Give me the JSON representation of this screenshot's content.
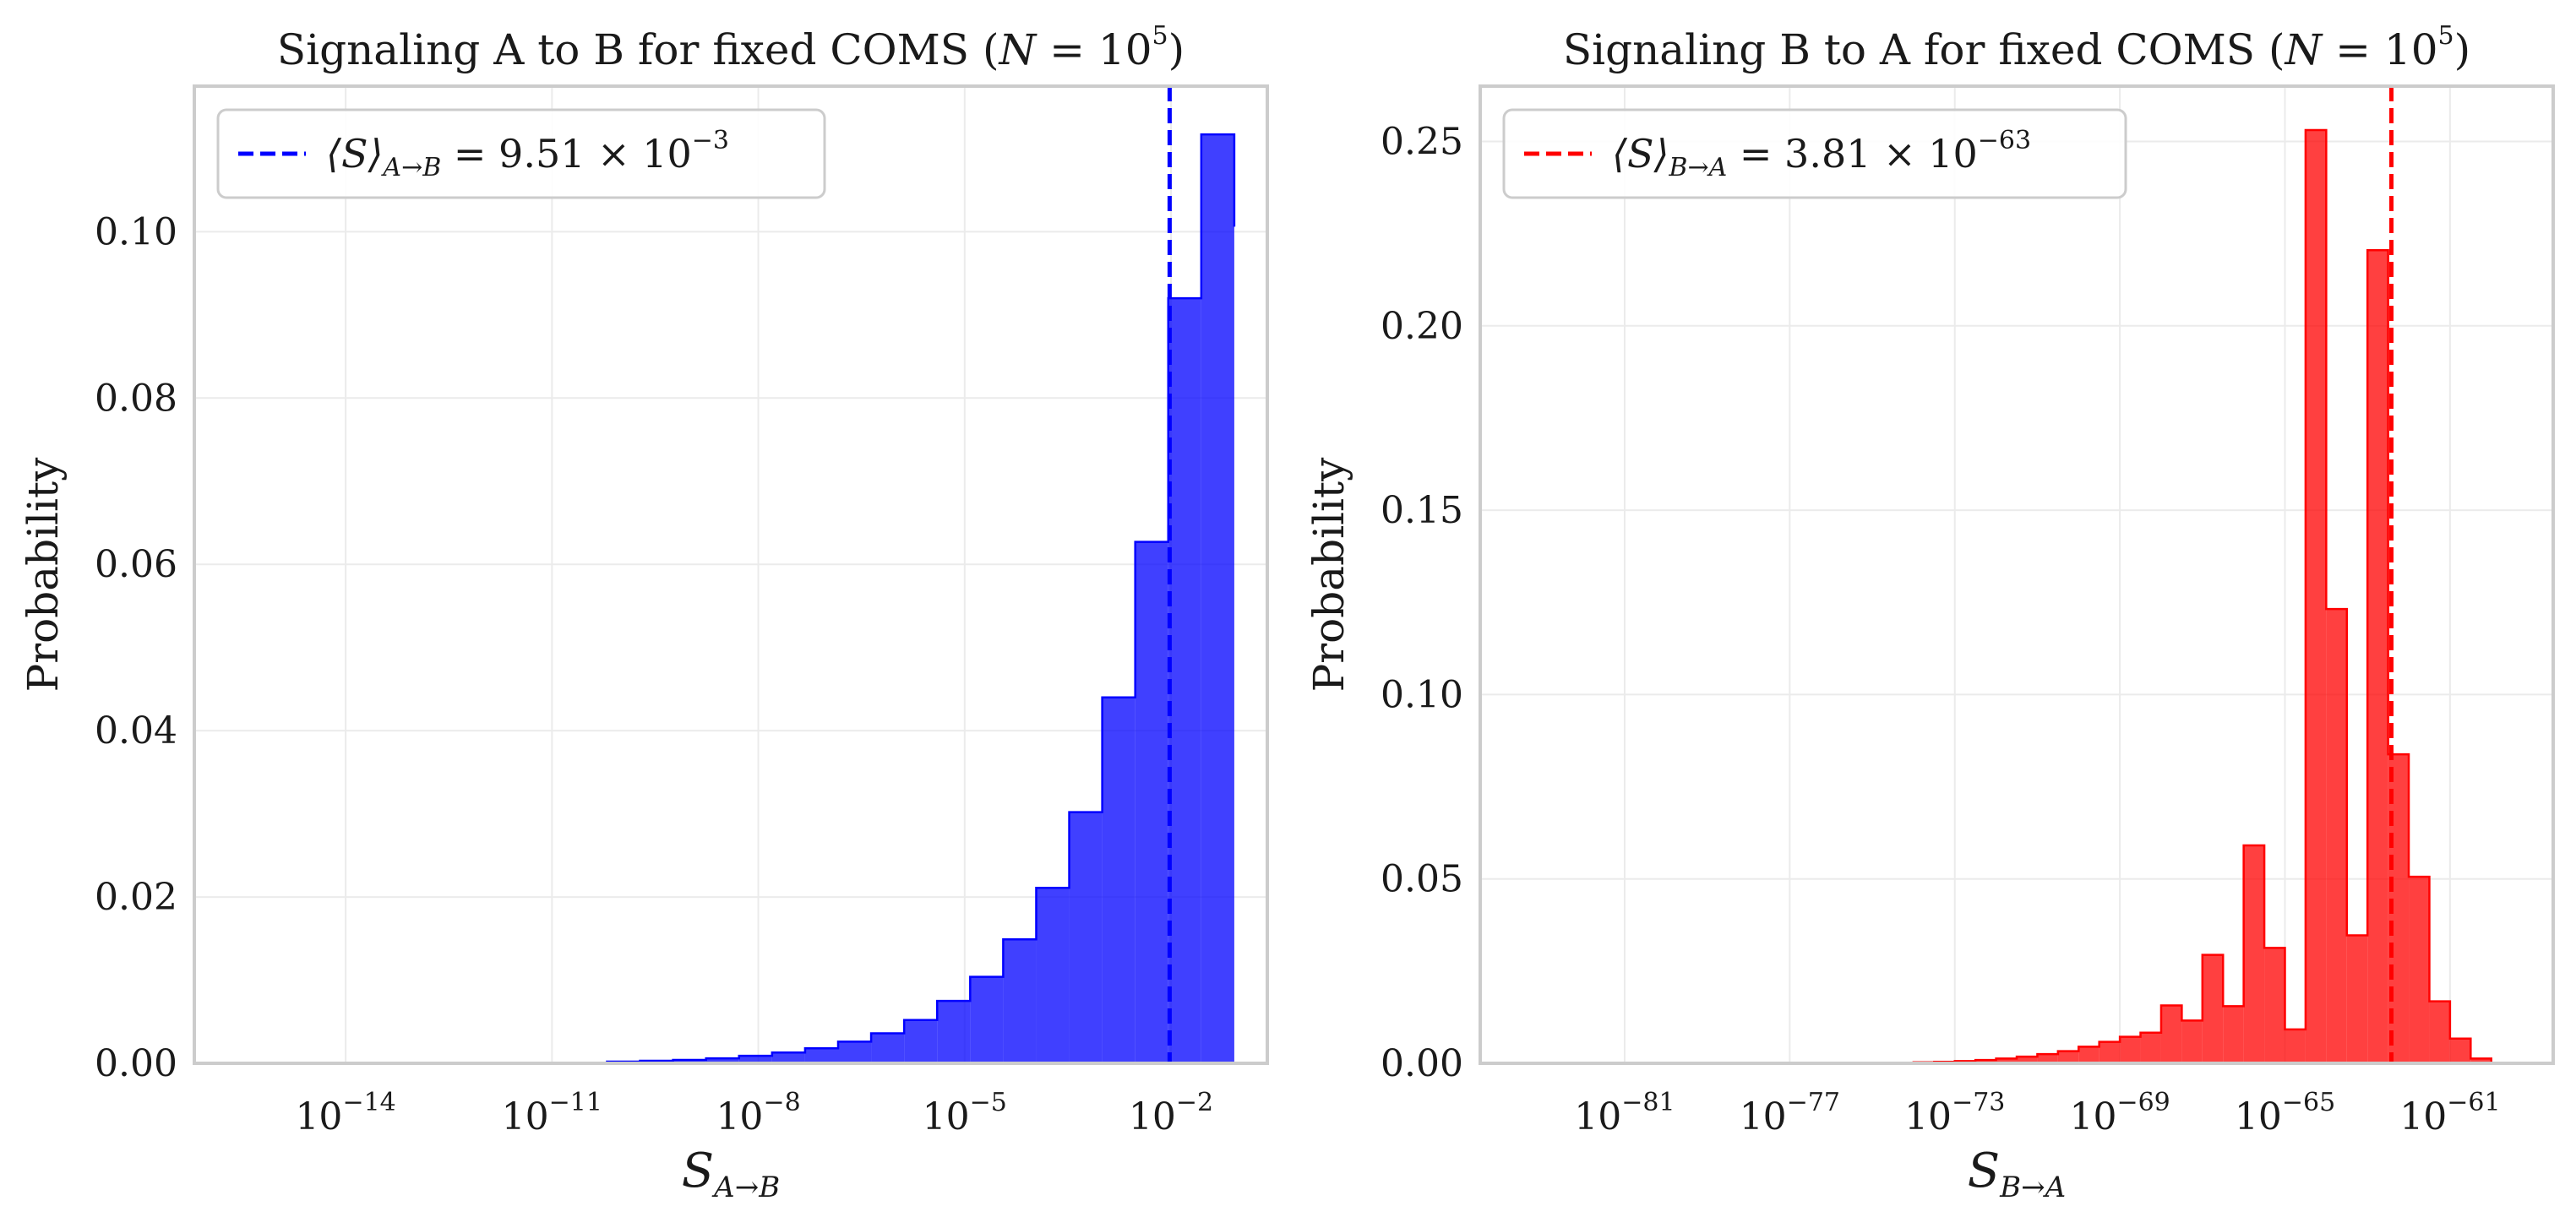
{
  "chart_data": [
    {
      "type": "bar",
      "title_text": "Signaling A to B for fixed COMS (",
      "title_math_lhs": "N",
      "title_math_rhs": " = 10",
      "title_math_exp": "5",
      "title_close": ")",
      "xlabel_main": "S",
      "xlabel_sub": "A→B",
      "ylabel": "Probability",
      "xscale": "log",
      "x_tick_exponents": [
        -14,
        -11,
        -8,
        -5,
        -2
      ],
      "x_tick_base": "10",
      "xlim_exp": [
        -16.2,
        -0.6
      ],
      "ylim": [
        0,
        0.1175
      ],
      "y_ticks": [
        "0.00",
        "0.02",
        "0.04",
        "0.06",
        "0.08",
        "0.10"
      ],
      "y_tick_values": [
        0,
        0.02,
        0.04,
        0.06,
        0.08,
        0.1
      ],
      "grid": true,
      "color": "#0000ff",
      "bin_edges_exp": [
        -10.2,
        -9.72,
        -9.24,
        -8.76,
        -8.28,
        -7.8,
        -7.32,
        -6.84,
        -6.36,
        -5.88,
        -5.4,
        -4.92,
        -4.44,
        -3.96,
        -3.48,
        -3.0,
        -2.52,
        -2.04,
        -1.56,
        -1.08
      ],
      "values": [
        0.0002,
        0.0003,
        0.0004,
        0.0006,
        0.0009,
        0.0013,
        0.0018,
        0.0026,
        0.0036,
        0.0052,
        0.0075,
        0.0104,
        0.0149,
        0.0211,
        0.0302,
        0.044,
        0.0627,
        0.092,
        0.1117,
        0.1006
      ],
      "series": [
        {
          "name": "⟨S⟩",
          "values": [
            0.0002,
            0.0003,
            0.0004,
            0.0006,
            0.0009,
            0.0013,
            0.0018,
            0.0026,
            0.0036,
            0.0052,
            0.0075,
            0.0104,
            0.0149,
            0.0211,
            0.0302,
            0.044,
            0.0627,
            0.092,
            0.1117,
            0.1006
          ]
        }
      ],
      "legend_location": "top-left",
      "legend_symbol": "⟨S⟩",
      "legend_sub": "A→B",
      "legend_value": " = 9.51 × 10",
      "legend_exp": "−3",
      "mean_line_x_exp": -2.02
    },
    {
      "type": "bar",
      "title_text": "Signaling B to A for fixed COMS (",
      "title_math_lhs": "N",
      "title_math_rhs": " = 10",
      "title_math_exp": "5",
      "title_close": ")",
      "xlabel_main": "S",
      "xlabel_sub": "B→A",
      "ylabel": "Probability",
      "xscale": "log",
      "x_tick_exponents": [
        -81,
        -77,
        -73,
        -69,
        -65,
        -61
      ],
      "x_tick_base": "10",
      "xlim_exp": [
        -84.5,
        -58.5
      ],
      "ylim": [
        0,
        0.265
      ],
      "y_ticks": [
        "0.00",
        "0.05",
        "0.10",
        "0.15",
        "0.20",
        "0.25"
      ],
      "y_tick_values": [
        0,
        0.05,
        0.1,
        0.15,
        0.2,
        0.25
      ],
      "grid": true,
      "color": "#ff0000",
      "bin_edges_exp": [
        -74.0,
        -73.5,
        -73.0,
        -72.5,
        -72.0,
        -71.5,
        -71.0,
        -70.5,
        -70.0,
        -69.5,
        -69.0,
        -68.5,
        -68.0,
        -67.5,
        -67.0,
        -66.5,
        -66.0,
        -65.5,
        -65.0,
        -64.5,
        -64.0,
        -63.5,
        -63.0,
        -62.5,
        -62.0,
        -61.5,
        -61.0,
        -60.5,
        -60.0
      ],
      "values": [
        0.0003,
        0.0004,
        0.0006,
        0.0009,
        0.0013,
        0.0018,
        0.0025,
        0.0033,
        0.0045,
        0.0058,
        0.0072,
        0.0083,
        0.0157,
        0.0116,
        0.0294,
        0.0155,
        0.0591,
        0.0313,
        0.0092,
        0.2531,
        0.1232,
        0.0347,
        0.2205,
        0.0838,
        0.0506,
        0.0168,
        0.0067,
        0.0013
      ],
      "series": [
        {
          "name": "⟨S⟩",
          "values": [
            0.0003,
            0.0004,
            0.0006,
            0.0009,
            0.0013,
            0.0018,
            0.0025,
            0.0033,
            0.0045,
            0.0058,
            0.0072,
            0.0083,
            0.0157,
            0.0116,
            0.0294,
            0.0155,
            0.0591,
            0.0313,
            0.0092,
            0.2531,
            0.1232,
            0.0347,
            0.2205,
            0.0838,
            0.0506,
            0.0168,
            0.0067,
            0.0013
          ]
        }
      ],
      "legend_location": "top-left",
      "legend_symbol": "⟨S⟩",
      "legend_sub": "B→A",
      "legend_value": " = 3.81 × 10",
      "legend_exp": "−63",
      "mean_line_x_exp": -62.42
    }
  ]
}
